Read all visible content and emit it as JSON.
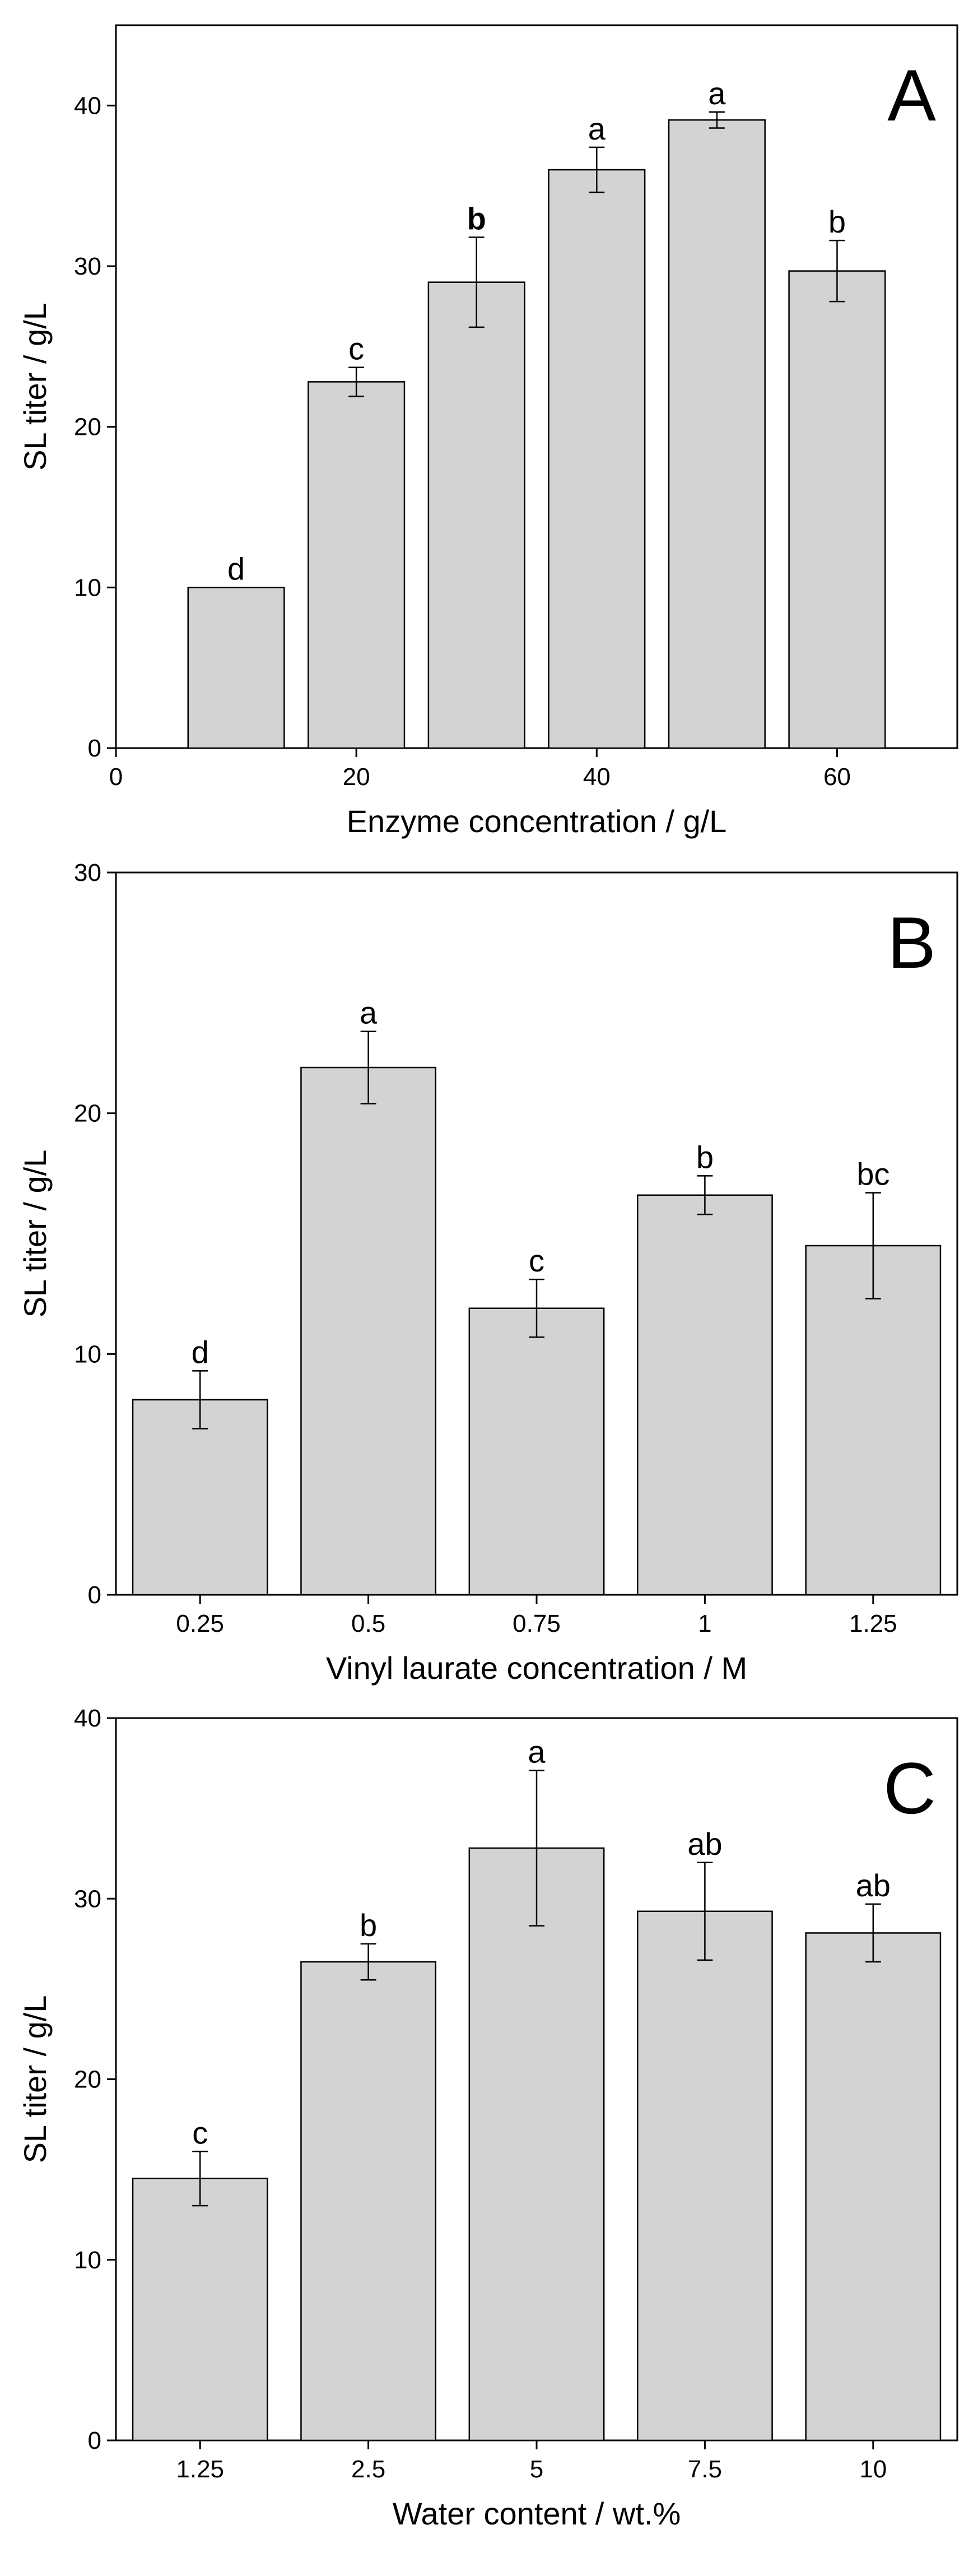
{
  "chart_data": [
    {
      "panel": "A",
      "type": "bar",
      "xlabel": "Enzyme concentration / g/L",
      "ylabel": "SL titer / g/L",
      "x_axis": "numeric",
      "xlim": [
        0,
        70
      ],
      "xticks": [
        "0",
        "20",
        "40",
        "60"
      ],
      "ylim": [
        0,
        45
      ],
      "yticks": [
        "0",
        "10",
        "20",
        "30",
        "40"
      ],
      "x": [
        10,
        20,
        30,
        40,
        50,
        60
      ],
      "values": [
        10.0,
        22.8,
        29.0,
        36.0,
        39.1,
        29.7
      ],
      "errors": [
        0,
        0.9,
        2.8,
        1.4,
        0.5,
        1.9
      ],
      "labels": [
        "d",
        "c",
        "b",
        "a",
        "a",
        "b"
      ],
      "bold_labels": [
        2
      ],
      "grid": false,
      "bar_color": "#d3d3d3"
    },
    {
      "panel": "B",
      "type": "bar",
      "xlabel": "Vinyl laurate concentration / M",
      "ylabel": "SL titer / g/L",
      "x_axis": "categorical",
      "categories": [
        "0.25",
        "0.5",
        "0.75",
        "1",
        "1.25"
      ],
      "ylim": [
        0,
        30
      ],
      "yticks": [
        "0",
        "10",
        "20",
        "30"
      ],
      "values": [
        8.1,
        21.9,
        11.9,
        16.6,
        14.5
      ],
      "errors": [
        1.2,
        1.5,
        1.2,
        0.8,
        2.2
      ],
      "labels": [
        "d",
        "a",
        "c",
        "b",
        "bc"
      ],
      "bold_labels": [],
      "grid": false,
      "bar_color": "#d3d3d3"
    },
    {
      "panel": "C",
      "type": "bar",
      "xlabel": "Water content / wt.%",
      "ylabel": "SL titer / g/L",
      "x_axis": "categorical",
      "categories": [
        "1.25",
        "2.5",
        "5",
        "7.5",
        "10"
      ],
      "ylim": [
        0,
        40
      ],
      "yticks": [
        "0",
        "10",
        "20",
        "30",
        "40"
      ],
      "values": [
        14.5,
        26.5,
        32.8,
        29.3,
        28.1
      ],
      "errors": [
        1.5,
        1.0,
        4.3,
        2.7,
        1.6
      ],
      "labels": [
        "c",
        "b",
        "a",
        "ab",
        "ab"
      ],
      "bold_labels": [],
      "grid": false,
      "bar_color": "#d3d3d3"
    }
  ]
}
